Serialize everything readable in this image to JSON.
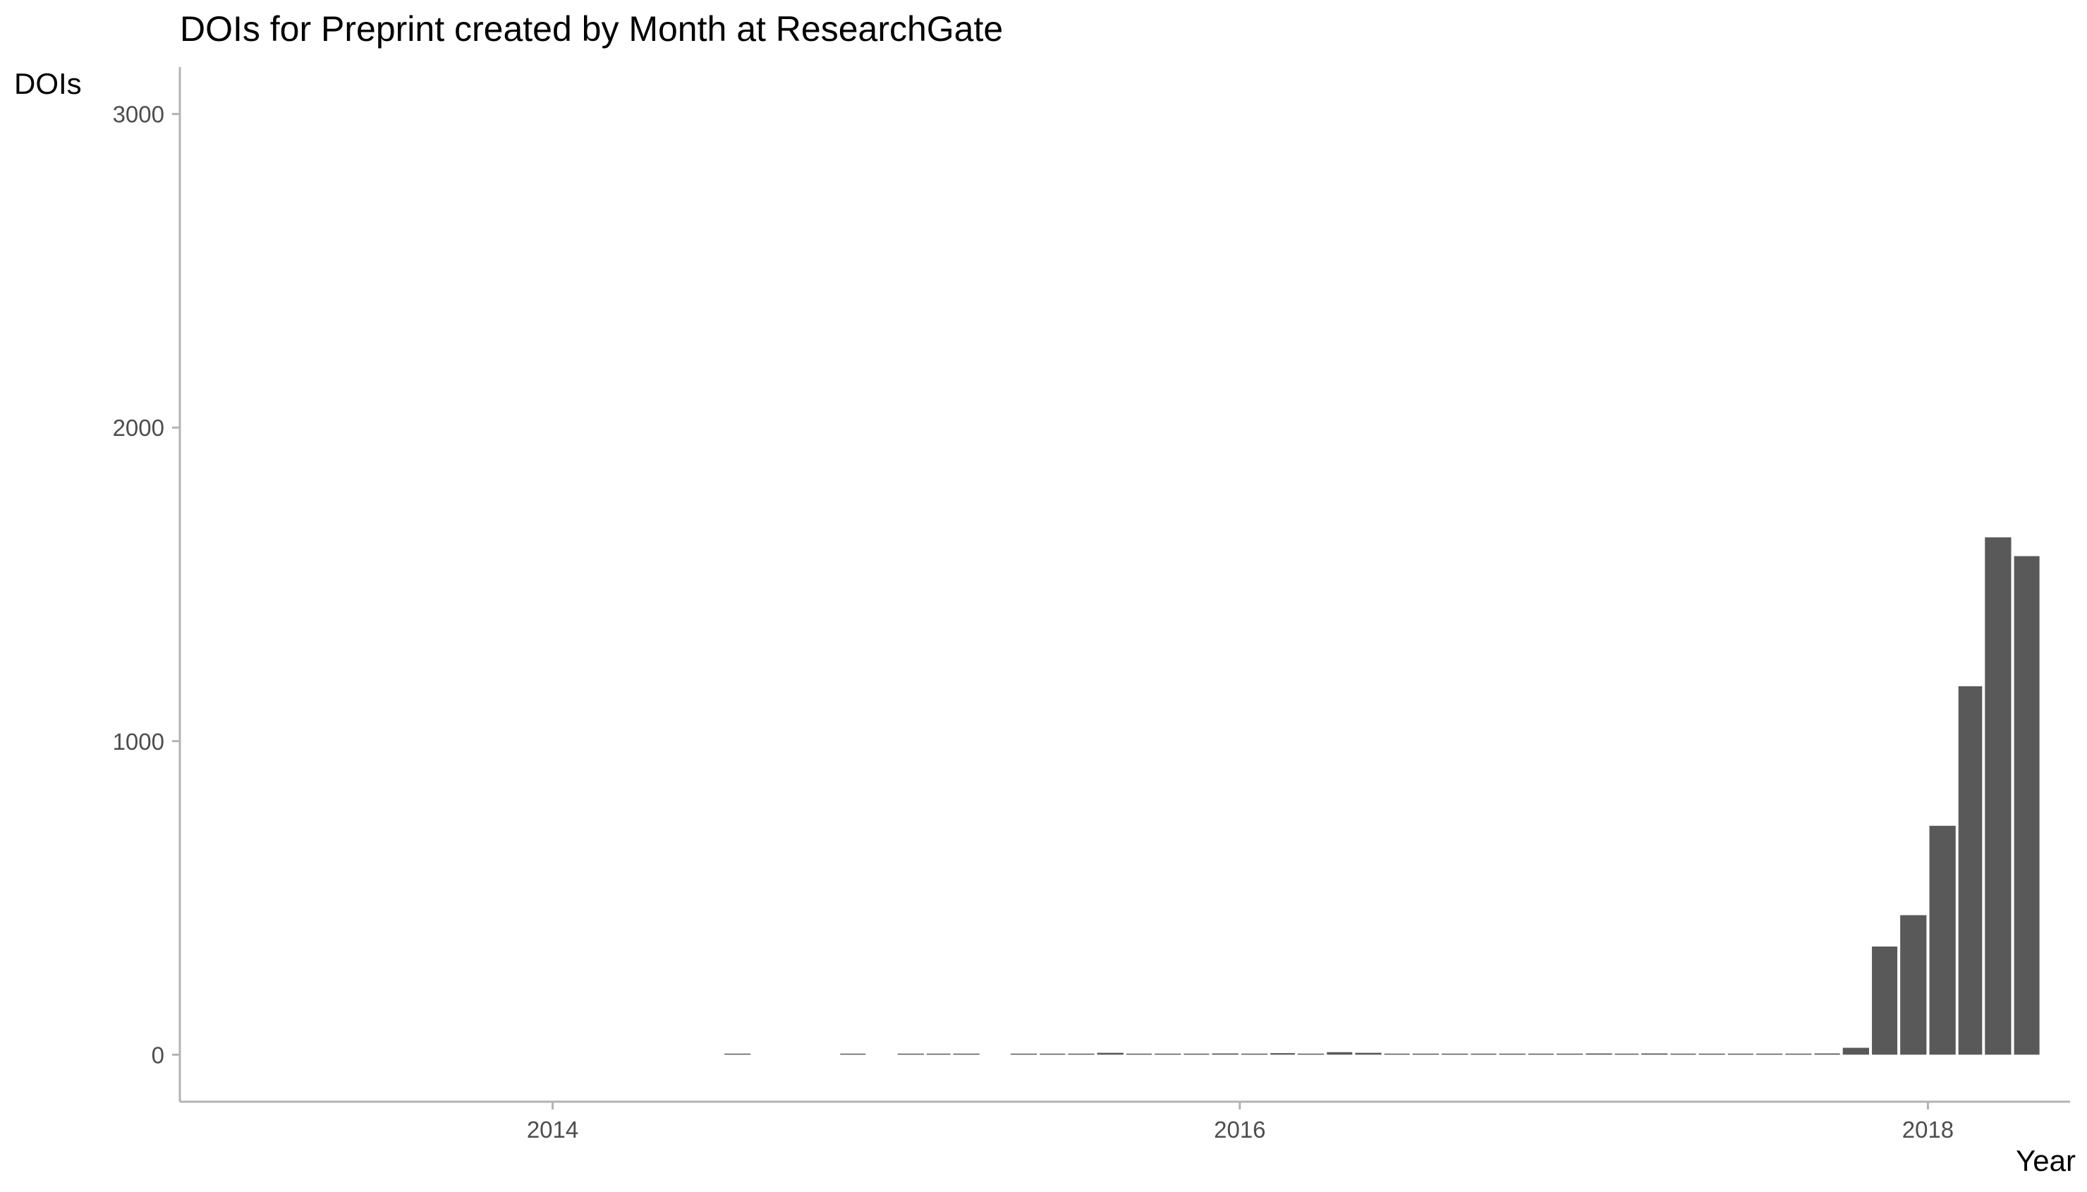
{
  "chart_data": {
    "type": "bar",
    "title": "DOIs for Preprint created by Month at ResearchGate",
    "xlabel": "Year",
    "ylabel": "DOIs",
    "ylim": [
      -150,
      3150
    ],
    "xlim": [
      "2012-12-01",
      "2018-06-01"
    ],
    "y_ticks": [
      0,
      1000,
      2000,
      3000
    ],
    "x_ticks": [
      "2014-01-01",
      "2016-01-01",
      "2018-01-01"
    ],
    "x_tick_labels": [
      "2014",
      "2016",
      "2018"
    ],
    "bar_color": "#595959",
    "grid": false,
    "legend": "none",
    "months": [
      "2014-07",
      "2014-11",
      "2015-01",
      "2015-02",
      "2015-03",
      "2015-05",
      "2015-06",
      "2015-07",
      "2015-08",
      "2015-09",
      "2015-10",
      "2015-11",
      "2015-12",
      "2016-01",
      "2016-02",
      "2016-03",
      "2016-04",
      "2016-05",
      "2016-06",
      "2016-07",
      "2016-08",
      "2016-09",
      "2016-10",
      "2016-11",
      "2016-12",
      "2017-01",
      "2017-02",
      "2017-03",
      "2017-04",
      "2017-05",
      "2017-06",
      "2017-07",
      "2017-08",
      "2017-09",
      "2017-10",
      "2017-11",
      "2017-12",
      "2018-01",
      "2018-02",
      "2018-03",
      "2018-04"
    ],
    "values": [
      2,
      2,
      3,
      2,
      3,
      2,
      2,
      2,
      6,
      2,
      2,
      2,
      4,
      3,
      5,
      2,
      8,
      6,
      2,
      3,
      3,
      3,
      3,
      2,
      3,
      4,
      3,
      4,
      2,
      3,
      3,
      3,
      2,
      4,
      22,
      345,
      445,
      730,
      1175,
      1650,
      1590
    ]
  }
}
